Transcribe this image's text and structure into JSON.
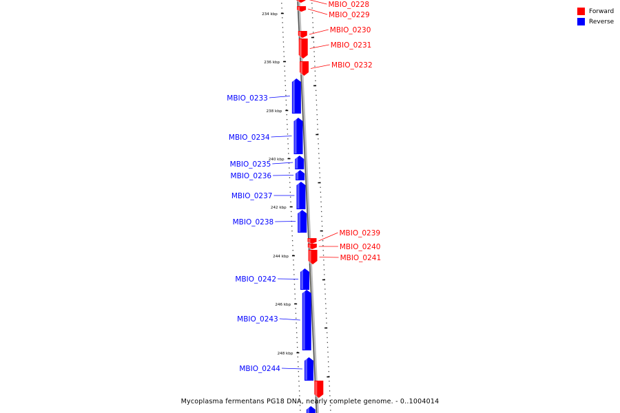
{
  "caption": "Mycoplasma fermentans PG18 DNA, nearly complete genome. - 0..1004014",
  "legend": {
    "forward_label": "Forward",
    "reverse_label": "Reverse",
    "forward_color": "#ff0000",
    "reverse_color": "#0000ff"
  },
  "scale_ticks": [
    {
      "kbp": 234,
      "label": "234 kbp"
    },
    {
      "kbp": 236,
      "label": "236 kbp"
    },
    {
      "kbp": 238,
      "label": "238 kbp"
    },
    {
      "kbp": 240,
      "label": "240 kbp"
    },
    {
      "kbp": 242,
      "label": "242 kbp"
    },
    {
      "kbp": 244,
      "label": "244 kbp"
    },
    {
      "kbp": 246,
      "label": "246 kbp"
    },
    {
      "kbp": 248,
      "label": "248 kbp"
    }
  ],
  "genes": [
    {
      "name": "MBIO_0228",
      "strand": "forward"
    },
    {
      "name": "MBIO_0229",
      "strand": "forward"
    },
    {
      "name": "MBIO_0230",
      "strand": "forward"
    },
    {
      "name": "MBIO_0231",
      "strand": "forward"
    },
    {
      "name": "MBIO_0232",
      "strand": "forward"
    },
    {
      "name": "MBIO_0233",
      "strand": "reverse"
    },
    {
      "name": "MBIO_0234",
      "strand": "reverse"
    },
    {
      "name": "MBIO_0235",
      "strand": "reverse"
    },
    {
      "name": "MBIO_0236",
      "strand": "reverse"
    },
    {
      "name": "MBIO_0237",
      "strand": "reverse"
    },
    {
      "name": "MBIO_0238",
      "strand": "reverse"
    },
    {
      "name": "MBIO_0239",
      "strand": "forward"
    },
    {
      "name": "MBIO_0240",
      "strand": "forward"
    },
    {
      "name": "MBIO_0241",
      "strand": "forward"
    },
    {
      "name": "MBIO_0242",
      "strand": "reverse"
    },
    {
      "name": "MBIO_0243",
      "strand": "reverse"
    },
    {
      "name": "MBIO_0244",
      "strand": "reverse"
    },
    {
      "name": "",
      "strand": "forward"
    },
    {
      "name": "",
      "strand": "reverse"
    }
  ]
}
